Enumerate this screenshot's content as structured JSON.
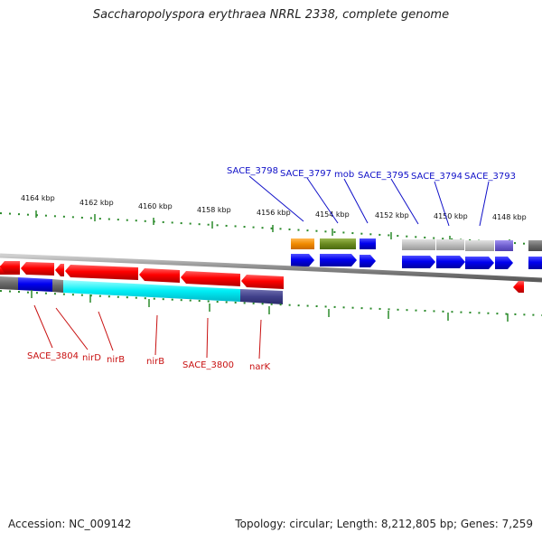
{
  "title": "Saccharopolyspora erythraea NRRL 2338, complete genome",
  "footer": {
    "accession": "Accession: NC_009142",
    "summary": "Topology: circular; Length: 8,212,805 bp; Genes: 7,259"
  },
  "kbp_labels": [
    "4164 kbp",
    "4162 kbp",
    "4160 kbp",
    "4158 kbp",
    "4156 kbp",
    "4154 kbp",
    "4152 kbp",
    "4150 kbp",
    "4148 kbp"
  ],
  "top_gene_labels": [
    "SACE_3798",
    "SACE_3797",
    "mob",
    "SACE_3795",
    "SACE_3794",
    "SACE_3793"
  ],
  "bottom_gene_labels": [
    "SACE_3804",
    "nirD",
    "nirB",
    "nirB",
    "SACE_3800",
    "narK"
  ],
  "colors": {
    "axis": "#7a7a7a",
    "tick": "#2a8a2a",
    "reverse_gene": "#e80000",
    "forward_gene": "#0000e0",
    "label_forward": "#1010c8",
    "label_reverse": "#c81010",
    "cyan_feature": "#00e8f0",
    "olive_feature": "#6a8a20",
    "orange_feature": "#f09010",
    "gray_feature": "#bcbcbc",
    "purple_feature": "#7060d0",
    "navy_feature": "#40408a"
  }
}
